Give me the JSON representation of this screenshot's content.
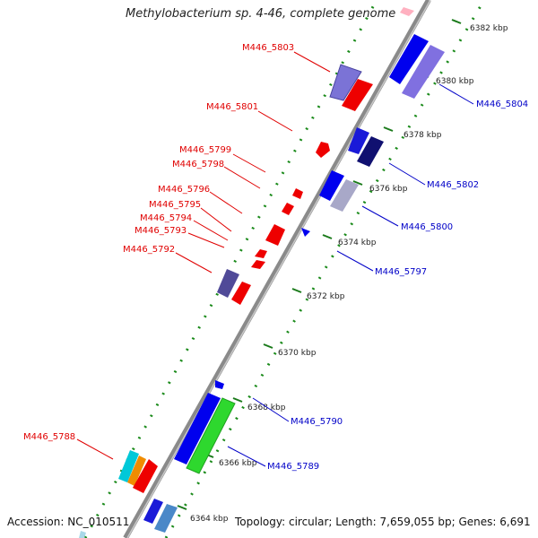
{
  "title": "Methylobacterium sp. 4-46, complete genome",
  "accession": "Accession: NC_010511",
  "topology": "Topology: circular; Length: 7,659,055 bp; Genes: 6,691",
  "colors": {
    "forward_label": "#e00000",
    "reverse_label": "#0000c8",
    "backbone": "#8a8a8a",
    "tick": "#1a7a1a"
  },
  "ticks": [
    "6364 kbp",
    "6366 kbp",
    "6368 kbp",
    "6370 kbp",
    "6372 kbp",
    "6374 kbp",
    "6376 kbp",
    "6378 kbp",
    "6380 kbp",
    "6382 kbp"
  ],
  "labels_forward": [
    "M446_5803",
    "M446_5801",
    "M446_5799",
    "M446_5798",
    "M446_5796",
    "M446_5795",
    "M446_5794",
    "M446_5793",
    "M446_5792",
    "M446_5788"
  ],
  "labels_reverse": [
    "M446_5804",
    "M446_5802",
    "M446_5800",
    "M446_5797",
    "M446_5790",
    "M446_5789"
  ]
}
